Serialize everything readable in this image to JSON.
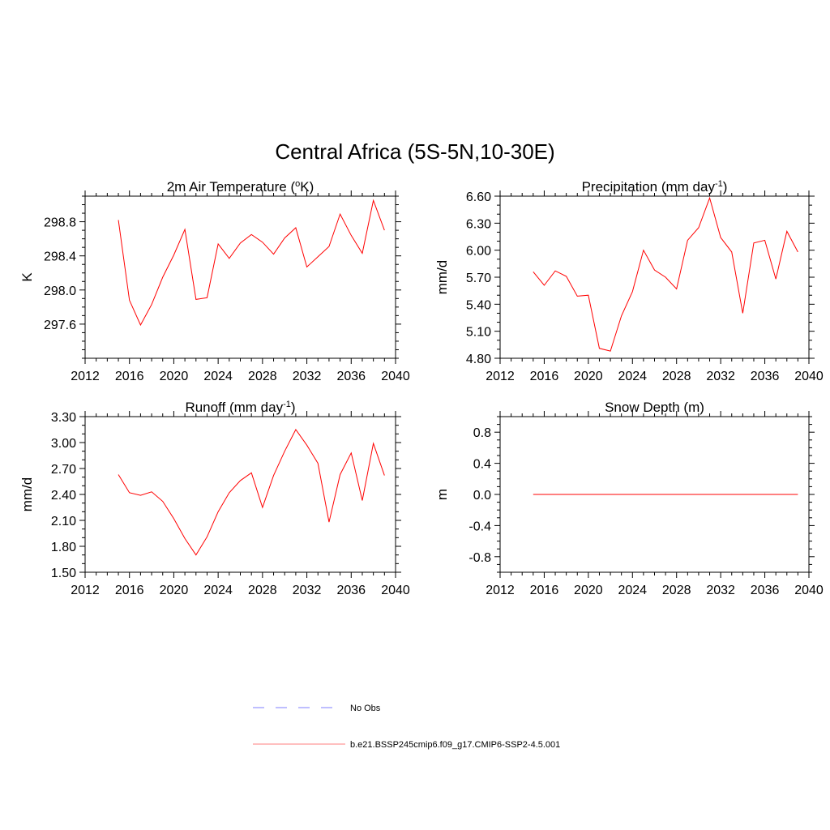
{
  "figure": {
    "title": "Central Africa (5S-5N,10-30E)"
  },
  "colors": {
    "model_line": "#ff0000",
    "model_legend_line": "#ff9999",
    "obs_legend_line": "#9999ff",
    "axis": "#000000"
  },
  "legend": {
    "obs_label": "No Obs",
    "model_label": "b.e21.BSSP245cmip6.f09_g17.CMIP6-SSP2-4.5.001"
  },
  "chart_data": [
    {
      "type": "line",
      "title_main": "2m Air Temperature (",
      "title_sup": "o",
      "title_end": "K)",
      "ylabel": "K",
      "xlabel": "",
      "xlim": [
        2012,
        2040
      ],
      "ylim": [
        297.2,
        299.1
      ],
      "x_ticks": [
        2012,
        2016,
        2020,
        2024,
        2028,
        2032,
        2036,
        2040
      ],
      "x_tick_labels": [
        "2012",
        "2016",
        "2020",
        "2024",
        "2028",
        "2032",
        "2036",
        "2040"
      ],
      "y_ticks": [
        297.6,
        298.0,
        298.4,
        298.8
      ],
      "y_tick_labels": [
        "297.6",
        "298.0",
        "298.4",
        "298.8"
      ],
      "y_minor_step": 0.1,
      "x": [
        2015,
        2016,
        2017,
        2018,
        2019,
        2020,
        2021,
        2022,
        2023,
        2024,
        2025,
        2026,
        2027,
        2028,
        2029,
        2030,
        2031,
        2032,
        2033,
        2034,
        2035,
        2036,
        2037,
        2038,
        2039
      ],
      "series": [
        {
          "values": [
            298.82,
            297.88,
            297.59,
            297.83,
            298.15,
            298.41,
            298.71,
            297.89,
            297.91,
            298.54,
            298.37,
            298.55,
            298.65,
            298.56,
            298.42,
            298.61,
            298.73,
            298.27,
            298.39,
            298.51,
            298.89,
            298.64,
            298.43,
            299.05,
            298.7
          ]
        }
      ]
    },
    {
      "type": "line",
      "title_main": "Precipitation (mm day",
      "title_sup": "-1",
      "title_end": ")",
      "ylabel": "mm/d",
      "xlabel": "",
      "xlim": [
        2012,
        2040
      ],
      "ylim": [
        4.8,
        6.6
      ],
      "x_ticks": [
        2012,
        2016,
        2020,
        2024,
        2028,
        2032,
        2036,
        2040
      ],
      "x_tick_labels": [
        "2012",
        "2016",
        "2020",
        "2024",
        "2028",
        "2032",
        "2036",
        "2040"
      ],
      "y_ticks": [
        4.8,
        5.1,
        5.4,
        5.7,
        6.0,
        6.3,
        6.6
      ],
      "y_tick_labels": [
        "4.80",
        "5.10",
        "5.40",
        "5.70",
        "6.00",
        "6.30",
        "6.60"
      ],
      "y_minor_step": 0.1,
      "x": [
        2015,
        2016,
        2017,
        2018,
        2019,
        2020,
        2021,
        2022,
        2023,
        2024,
        2025,
        2026,
        2027,
        2028,
        2029,
        2030,
        2031,
        2032,
        2033,
        2034,
        2035,
        2036,
        2037,
        2038,
        2039
      ],
      "series": [
        {
          "values": [
            5.76,
            5.61,
            5.77,
            5.71,
            5.49,
            5.5,
            4.91,
            4.88,
            5.27,
            5.54,
            6.0,
            5.78,
            5.7,
            5.57,
            6.11,
            6.25,
            6.58,
            6.14,
            5.98,
            5.3,
            6.08,
            6.11,
            5.68,
            6.21,
            5.98
          ]
        }
      ]
    },
    {
      "type": "line",
      "title_main": "Runoff (mm day",
      "title_sup": "-1",
      "title_end": ")",
      "ylabel": "mm/d",
      "xlabel": "",
      "xlim": [
        2012,
        2040
      ],
      "ylim": [
        1.5,
        3.3
      ],
      "x_ticks": [
        2012,
        2016,
        2020,
        2024,
        2028,
        2032,
        2036,
        2040
      ],
      "x_tick_labels": [
        "2012",
        "2016",
        "2020",
        "2024",
        "2028",
        "2032",
        "2036",
        "2040"
      ],
      "y_ticks": [
        1.5,
        1.8,
        2.1,
        2.4,
        2.7,
        3.0,
        3.3
      ],
      "y_tick_labels": [
        "1.50",
        "1.80",
        "2.10",
        "2.40",
        "2.70",
        "3.00",
        "3.30"
      ],
      "y_minor_step": 0.1,
      "x": [
        2015,
        2016,
        2017,
        2018,
        2019,
        2020,
        2021,
        2022,
        2023,
        2024,
        2025,
        2026,
        2027,
        2028,
        2029,
        2030,
        2031,
        2032,
        2033,
        2034,
        2035,
        2036,
        2037,
        2038,
        2039
      ],
      "series": [
        {
          "values": [
            2.63,
            2.42,
            2.39,
            2.43,
            2.32,
            2.12,
            1.89,
            1.7,
            1.91,
            2.2,
            2.42,
            2.56,
            2.65,
            2.25,
            2.62,
            2.9,
            3.15,
            2.97,
            2.76,
            2.08,
            2.63,
            2.88,
            2.33,
            2.99,
            2.62
          ]
        }
      ]
    },
    {
      "type": "line",
      "title_main": "Snow Depth (m)",
      "title_sup": "",
      "title_end": "",
      "ylabel": "m",
      "xlabel": "",
      "xlim": [
        2012,
        2040
      ],
      "ylim": [
        -1.0,
        1.0
      ],
      "x_ticks": [
        2012,
        2016,
        2020,
        2024,
        2028,
        2032,
        2036,
        2040
      ],
      "x_tick_labels": [
        "2012",
        "2016",
        "2020",
        "2024",
        "2028",
        "2032",
        "2036",
        "2040"
      ],
      "y_ticks": [
        -0.8,
        -0.4,
        0.0,
        0.4,
        0.8
      ],
      "y_tick_labels": [
        "-0.8",
        "-0.4",
        "0.0",
        "0.4",
        "0.8"
      ],
      "y_minor_step": 0.1,
      "x": [
        2015,
        2016,
        2017,
        2018,
        2019,
        2020,
        2021,
        2022,
        2023,
        2024,
        2025,
        2026,
        2027,
        2028,
        2029,
        2030,
        2031,
        2032,
        2033,
        2034,
        2035,
        2036,
        2037,
        2038,
        2039
      ],
      "series": [
        {
          "values": [
            0,
            0,
            0,
            0,
            0,
            0,
            0,
            0,
            0,
            0,
            0,
            0,
            0,
            0,
            0,
            0,
            0,
            0,
            0,
            0,
            0,
            0,
            0,
            0,
            0
          ]
        }
      ]
    }
  ]
}
